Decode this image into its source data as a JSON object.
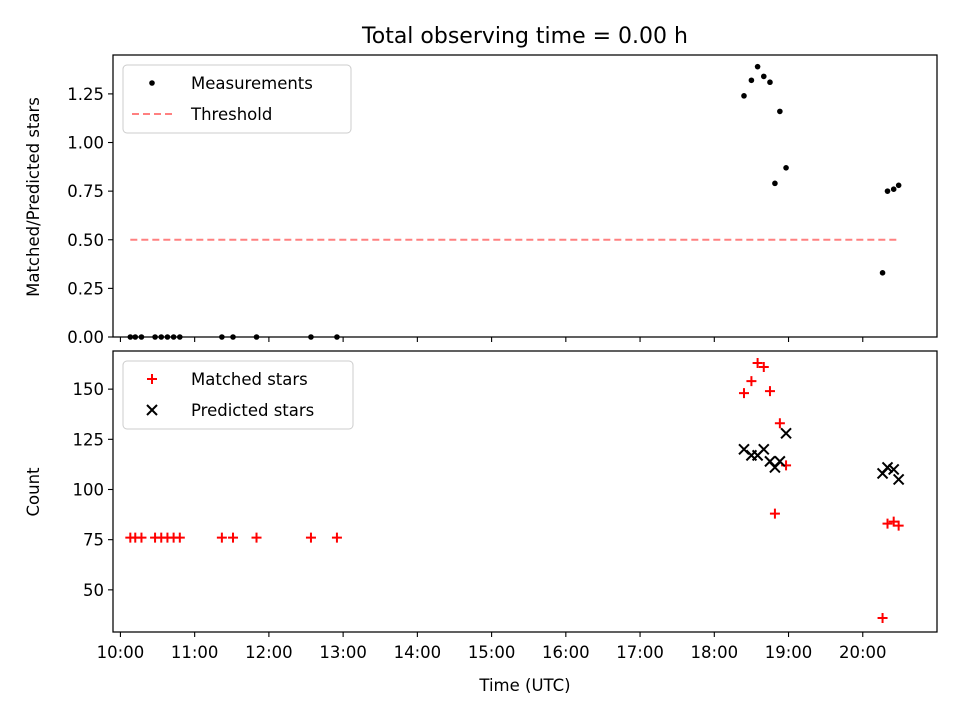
{
  "chart_data": [
    {
      "type": "scatter",
      "title": "Total observing time = 0.00 h",
      "xlabel": "",
      "ylabel": "Matched/Predicted stars",
      "xlim": [
        "09:54",
        "21:00"
      ],
      "ylim": [
        0,
        1.45
      ],
      "yticks": [
        "0.00",
        "0.25",
        "0.50",
        "0.75",
        "1.00",
        "1.25"
      ],
      "legend": {
        "placement": "top-left",
        "entries": [
          "Measurements",
          "Threshold"
        ]
      },
      "series": [
        {
          "name": "Measurements",
          "color": "#000000",
          "marker": "dot",
          "points": [
            [
              "10:08",
              0.0
            ],
            [
              "10:12",
              0.0
            ],
            [
              "10:17",
              0.0
            ],
            [
              "10:28",
              0.0
            ],
            [
              "10:33",
              0.0
            ],
            [
              "10:38",
              0.0
            ],
            [
              "10:43",
              0.0
            ],
            [
              "10:48",
              0.0
            ],
            [
              "11:22",
              0.0
            ],
            [
              "11:31",
              0.0
            ],
            [
              "11:50",
              0.0
            ],
            [
              "12:34",
              0.0
            ],
            [
              "12:55",
              0.0
            ],
            [
              "18:24",
              1.24
            ],
            [
              "18:30",
              1.32
            ],
            [
              "18:35",
              1.39
            ],
            [
              "18:40",
              1.34
            ],
            [
              "18:45",
              1.31
            ],
            [
              "18:49",
              0.79
            ],
            [
              "18:53",
              1.16
            ],
            [
              "18:58",
              0.87
            ],
            [
              "20:16",
              0.33
            ],
            [
              "20:20",
              0.75
            ],
            [
              "20:25",
              0.76
            ],
            [
              "20:29",
              0.78
            ]
          ]
        },
        {
          "name": "Threshold",
          "color": "#ff8080",
          "style": "dashed",
          "points": [
            [
              "10:08",
              0.5
            ],
            [
              "20:29",
              0.5
            ]
          ]
        }
      ]
    },
    {
      "type": "scatter",
      "title": "",
      "xlabel": "Time (UTC)",
      "ylabel": "Count",
      "xlim": [
        "09:54",
        "21:00"
      ],
      "ylim": [
        29,
        169
      ],
      "xticks": [
        "10:00",
        "11:00",
        "12:00",
        "13:00",
        "14:00",
        "15:00",
        "16:00",
        "17:00",
        "18:00",
        "19:00",
        "20:00"
      ],
      "yticks": [
        "50",
        "75",
        "100",
        "125",
        "150"
      ],
      "legend": {
        "placement": "top-left",
        "entries": [
          "Matched stars",
          "Predicted stars"
        ]
      },
      "series": [
        {
          "name": "Matched stars",
          "color": "#ff0000",
          "marker": "plus",
          "points": [
            [
              "10:08",
              76
            ],
            [
              "10:12",
              76
            ],
            [
              "10:17",
              76
            ],
            [
              "10:28",
              76
            ],
            [
              "10:33",
              76
            ],
            [
              "10:38",
              76
            ],
            [
              "10:43",
              76
            ],
            [
              "10:48",
              76
            ],
            [
              "11:22",
              76
            ],
            [
              "11:31",
              76
            ],
            [
              "11:50",
              76
            ],
            [
              "12:34",
              76
            ],
            [
              "12:55",
              76
            ],
            [
              "18:24",
              148
            ],
            [
              "18:30",
              154
            ],
            [
              "18:35",
              163
            ],
            [
              "18:40",
              161
            ],
            [
              "18:45",
              149
            ],
            [
              "18:49",
              88
            ],
            [
              "18:53",
              133
            ],
            [
              "18:58",
              112
            ],
            [
              "20:16",
              36
            ],
            [
              "20:20",
              83
            ],
            [
              "20:25",
              84
            ],
            [
              "20:29",
              82
            ]
          ]
        },
        {
          "name": "Predicted stars",
          "color": "#000000",
          "marker": "x",
          "points": [
            [
              "18:24",
              120
            ],
            [
              "18:30",
              117
            ],
            [
              "18:35",
              117
            ],
            [
              "18:40",
              120
            ],
            [
              "18:45",
              114
            ],
            [
              "18:49",
              111
            ],
            [
              "18:53",
              114
            ],
            [
              "18:58",
              128
            ],
            [
              "20:16",
              108
            ],
            [
              "20:20",
              111
            ],
            [
              "20:25",
              110
            ],
            [
              "20:29",
              105
            ]
          ]
        }
      ]
    }
  ]
}
